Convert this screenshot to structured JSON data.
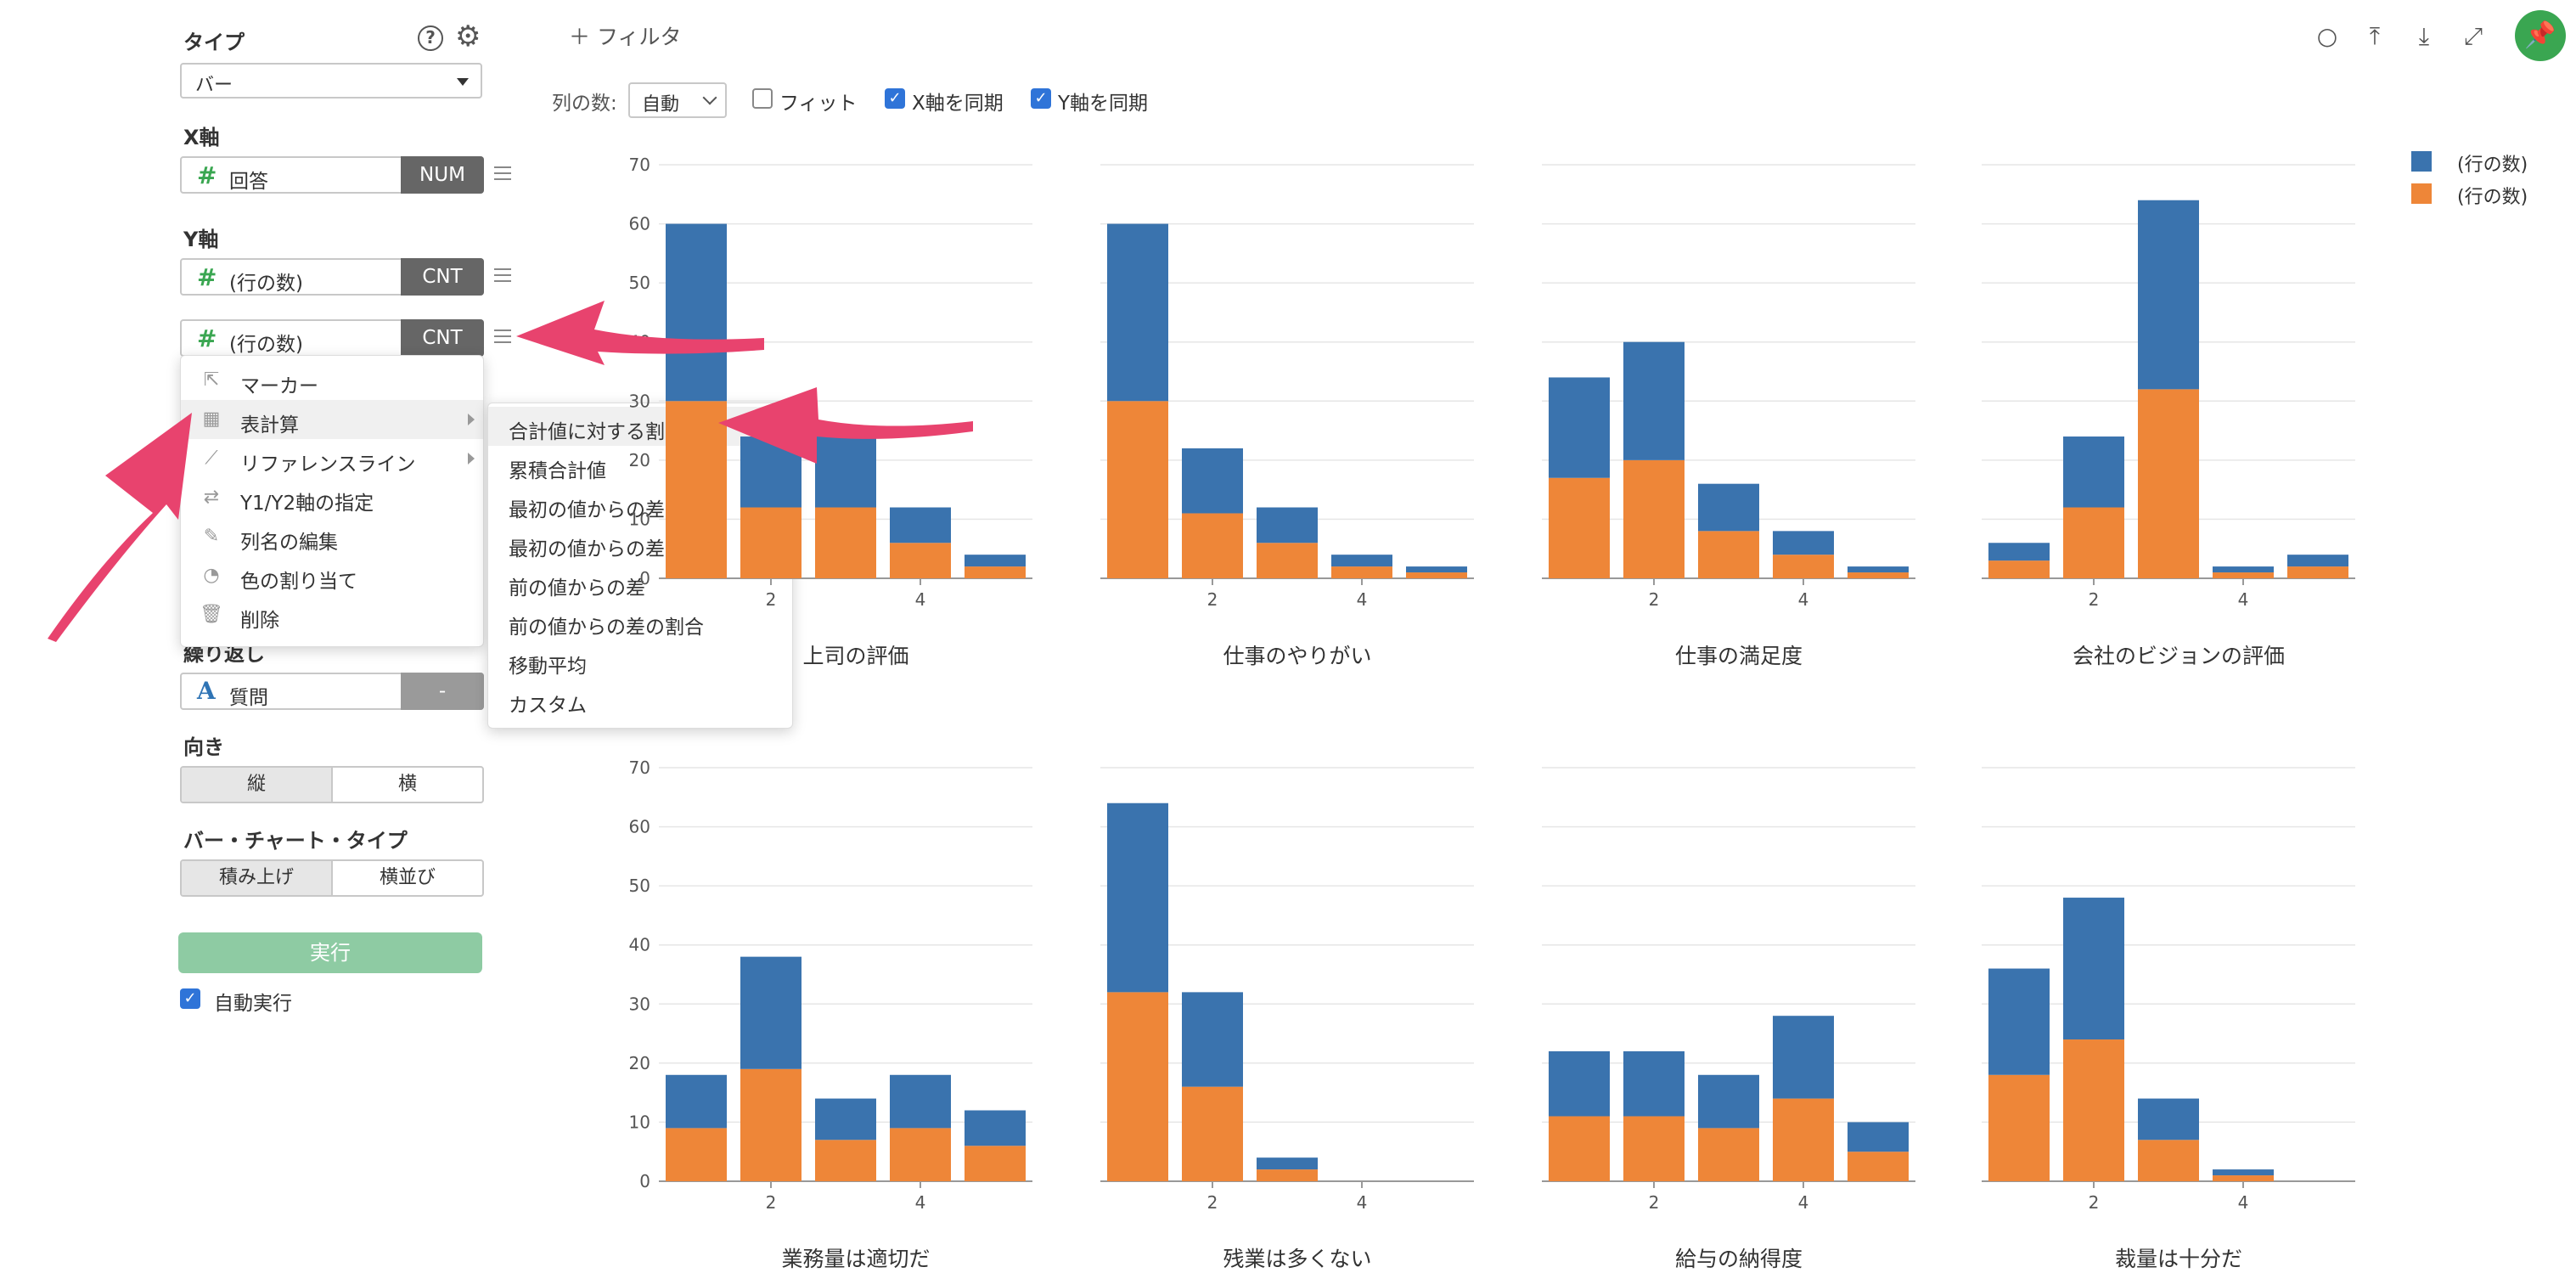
{
  "sidebar": {
    "type_label": "タイプ",
    "help_icon": "question-circle-icon",
    "settings_icon": "gear-icon",
    "chart_type": "バー",
    "x_label": "X軸",
    "x_field": {
      "name": "回答",
      "tag": "NUM"
    },
    "y_label": "Y軸",
    "y_fields": [
      {
        "name": "(行の数)",
        "tag": "CNT"
      },
      {
        "name": "(行の数)",
        "tag": "CNT"
      }
    ],
    "repeat_label": "繰り返し",
    "repeat_field": {
      "name": "質問",
      "tag": "-"
    },
    "direction_label": "向き",
    "direction_options": [
      "縦",
      "横"
    ],
    "bar_type_label": "バー・チャート・タイプ",
    "bar_type_options": [
      "積み上げ",
      "横並び"
    ],
    "run_label": "実行",
    "auto_run_label": "自動実行"
  },
  "context_menu": {
    "items": [
      {
        "label": "マーカー",
        "icon": "cursor-icon"
      },
      {
        "label": "表計算",
        "icon": "table-icon"
      },
      {
        "label": "リファレンスライン",
        "icon": "line-chart-icon"
      },
      {
        "label": "Y1/Y2軸の指定",
        "icon": "swap-icon"
      },
      {
        "label": "列名の編集",
        "icon": "edit-icon"
      },
      {
        "label": "色の割り当て",
        "icon": "palette-icon"
      },
      {
        "label": "削除",
        "icon": "trash-icon"
      }
    ],
    "submenu": [
      "合計値に対する割合",
      "累積合計値",
      "最初の値からの差",
      "最初の値からの差の割合",
      "前の値からの差",
      "前の値からの差の割合",
      "移動平均",
      "カスタム"
    ]
  },
  "toolbar": {
    "filter_label": "＋ フィルタ",
    "columns_label": "列の数:",
    "columns_value": "自動",
    "fit_label": "フィット",
    "fit_checked": false,
    "sync_x_label": "X軸を同期",
    "sync_x_checked": true,
    "sync_y_label": "Y軸を同期",
    "sync_y_checked": true,
    "icons": [
      "comment-icon",
      "upload-icon",
      "download-icon",
      "expand-icon",
      "pin-icon"
    ]
  },
  "colors": {
    "blue": "#3a73ae",
    "orange": "#ee8638",
    "accent_green": "#3aa651",
    "arrow_pink": "#e8436e"
  },
  "chart_data": {
    "type": "bar",
    "stacked": true,
    "ylim": [
      0,
      70
    ],
    "yticks": [
      0,
      10,
      20,
      30,
      40,
      50,
      60,
      70
    ],
    "x": [
      1,
      2,
      3,
      4,
      5
    ],
    "xticks": [
      "2",
      "4"
    ],
    "legend": [
      {
        "name": "(行の数)",
        "color": "#3a73ae"
      },
      {
        "name": "(行の数)",
        "color": "#ee8638"
      }
    ],
    "legend_position": "top-right",
    "panels": [
      {
        "title": "上司の評価",
        "orange": [
          30,
          12,
          12,
          6,
          2
        ],
        "blue": [
          30,
          12,
          12,
          6,
          2
        ]
      },
      {
        "title": "仕事のやりがい",
        "orange": [
          30,
          11,
          6,
          2,
          1
        ],
        "blue": [
          30,
          11,
          6,
          2,
          1
        ]
      },
      {
        "title": "仕事の満足度",
        "orange": [
          17,
          20,
          8,
          4,
          1
        ],
        "blue": [
          17,
          20,
          8,
          4,
          1
        ]
      },
      {
        "title": "会社のビジョンの評価",
        "orange": [
          3,
          12,
          32,
          1,
          2
        ],
        "blue": [
          3,
          12,
          32,
          1,
          2
        ]
      },
      {
        "title": "業務量は適切だ",
        "orange": [
          9,
          19,
          7,
          9,
          6
        ],
        "blue": [
          9,
          19,
          7,
          9,
          6
        ]
      },
      {
        "title": "残業は多くない",
        "orange": [
          32,
          16,
          2,
          0,
          0
        ],
        "blue": [
          32,
          16,
          2,
          0,
          0
        ]
      },
      {
        "title": "給与の納得度",
        "orange": [
          11,
          11,
          9,
          14,
          5
        ],
        "blue": [
          11,
          11,
          9,
          14,
          5
        ]
      },
      {
        "title": "裁量は十分だ",
        "orange": [
          18,
          24,
          7,
          1,
          0
        ],
        "blue": [
          18,
          24,
          7,
          1,
          0
        ]
      }
    ]
  }
}
